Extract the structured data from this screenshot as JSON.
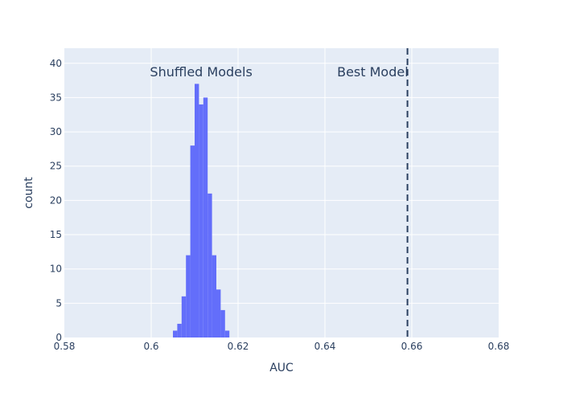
{
  "chart_data": {
    "type": "histogram",
    "xlabel": "AUC",
    "ylabel": "count",
    "xlim": [
      0.58,
      0.68
    ],
    "ylim": [
      0,
      42.2
    ],
    "x_ticks": [
      0.58,
      0.6,
      0.62,
      0.64,
      0.66,
      0.68
    ],
    "x_tick_labels": [
      "0.58",
      "0.6",
      "0.62",
      "0.64",
      "0.66",
      "0.68"
    ],
    "y_ticks": [
      0,
      5,
      10,
      15,
      20,
      25,
      30,
      35,
      40
    ],
    "y_tick_labels": [
      "0",
      "5",
      "10",
      "15",
      "20",
      "25",
      "30",
      "35",
      "40"
    ],
    "grid": true,
    "bar_color": "#636efa",
    "plot_bg": "#e5ecf6",
    "bin_width": 0.001,
    "bins": [
      {
        "start": 0.605,
        "count": 1
      },
      {
        "start": 0.606,
        "count": 2
      },
      {
        "start": 0.607,
        "count": 6
      },
      {
        "start": 0.608,
        "count": 12
      },
      {
        "start": 0.609,
        "count": 28
      },
      {
        "start": 0.61,
        "count": 37
      },
      {
        "start": 0.611,
        "count": 34
      },
      {
        "start": 0.612,
        "count": 35
      },
      {
        "start": 0.613,
        "count": 21
      },
      {
        "start": 0.614,
        "count": 12
      },
      {
        "start": 0.615,
        "count": 7
      },
      {
        "start": 0.616,
        "count": 4
      },
      {
        "start": 0.617,
        "count": 1
      }
    ],
    "reference_line": {
      "x": 0.659,
      "style": "dashed",
      "color": "#2a3f5f"
    },
    "annotations": [
      {
        "name": "shuffled-models-label",
        "text": "Shuffled Models",
        "x": 0.6115,
        "y": 38.8
      },
      {
        "name": "best-model-label",
        "text": "Best Model",
        "x": 0.651,
        "y": 38.8
      }
    ]
  }
}
